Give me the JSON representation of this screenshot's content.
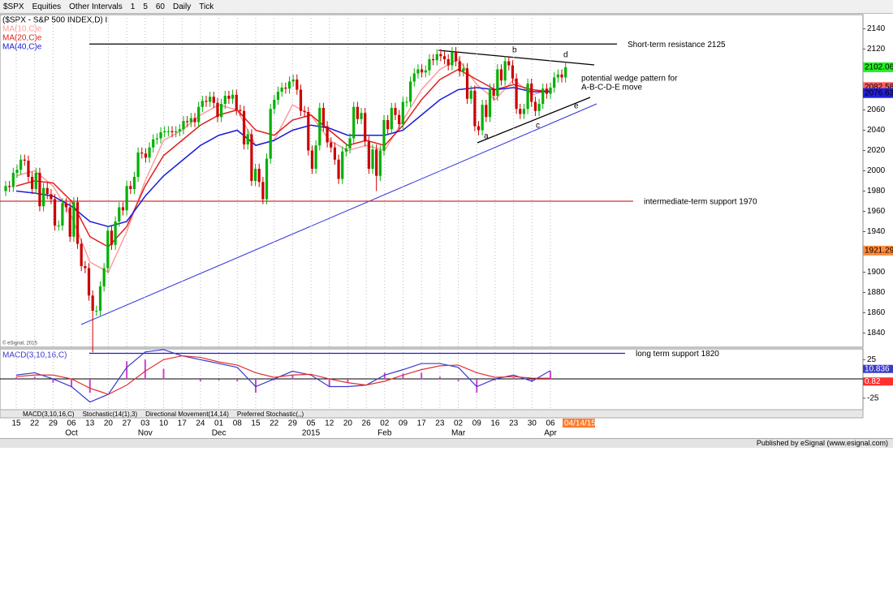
{
  "toolbar": {
    "symbol": "$SPX",
    "items": [
      "Equities",
      "Other Intervals",
      "1",
      "5",
      "60",
      "Daily",
      "Tick"
    ]
  },
  "chart_data": [
    {
      "type": "candlestick",
      "title": "($SPX - S&P 500 INDEX,D) I",
      "categories": [
        "15",
        "22",
        "29",
        "06",
        "13",
        "20",
        "27",
        "03",
        "10",
        "17",
        "24",
        "01",
        "08",
        "15",
        "22",
        "29",
        "05",
        "12",
        "20",
        "26",
        "02",
        "09",
        "17",
        "23",
        "02",
        "09",
        "16",
        "23",
        "30",
        "06"
      ],
      "month_labels": [
        null,
        null,
        null,
        "Oct",
        null,
        null,
        null,
        "Nov",
        null,
        null,
        null,
        "Dec",
        null,
        null,
        null,
        null,
        "2015",
        null,
        null,
        null,
        "Feb",
        null,
        null,
        null,
        "Mar",
        null,
        null,
        null,
        null,
        "Apr"
      ],
      "open": [
        1980,
        1985,
        1984,
        1998,
        2001,
        2011,
        2010,
        1994,
        1982,
        1998,
        1965,
        1983,
        1977,
        1972,
        1946,
        1946,
        1968,
        1964,
        1935,
        1969,
        1928,
        1906,
        1904,
        1877,
        1862,
        1862,
        1886,
        1904,
        1941,
        1927,
        1950,
        1964,
        1961,
        1985,
        1982,
        1994,
        2018,
        2017,
        2013,
        2023,
        2031,
        2032,
        2038,
        2039,
        2039,
        2038,
        2039,
        2041,
        2049,
        2048,
        2052,
        2048,
        2063,
        2069,
        2068,
        2073,
        2067,
        2053,
        2066,
        2074,
        2071,
        2075,
        2060,
        2059,
        2026,
        2036,
        1990,
        2002,
        1989,
        1972,
        2012,
        2061,
        2070,
        2078,
        2082,
        2081,
        2088,
        2090,
        2080,
        2059,
        2058,
        2020,
        2002,
        2025,
        2062,
        2044,
        2028,
        2023,
        2011,
        1992,
        2019,
        2022,
        2032,
        2063,
        2051,
        2057,
        2029,
        2002,
        2021,
        1995,
        2020,
        2050,
        2041,
        2062,
        2055,
        2046,
        2068,
        2068,
        2088,
        2096,
        2100,
        2097,
        2099,
        2110,
        2109,
        2115,
        2113,
        2110,
        2104,
        2117,
        2108,
        2098,
        2101,
        2071,
        2079,
        2044,
        2040,
        2065,
        2053,
        2081,
        2074,
        2100,
        2089,
        2108,
        2104,
        2091,
        2061,
        2056,
        2061,
        2086,
        2068,
        2059,
        2066,
        2081,
        2076,
        2082,
        2092,
        2095,
        2092
      ],
      "high": [
        1990,
        1990,
        2003,
        2006,
        2016,
        2016,
        2015,
        1999,
        2003,
        2003,
        1988,
        1988,
        1982,
        1977,
        1951,
        1973,
        1973,
        1969,
        1974,
        1974,
        1933,
        1911,
        1909,
        1882,
        1867,
        1891,
        1909,
        1946,
        1946,
        1955,
        1969,
        1969,
        1990,
        1990,
        1999,
        2023,
        2023,
        2022,
        2028,
        2036,
        2037,
        2043,
        2044,
        2044,
        2044,
        2044,
        2046,
        2054,
        2054,
        2057,
        2057,
        2068,
        2074,
        2074,
        2078,
        2078,
        2072,
        2071,
        2079,
        2079,
        2080,
        2080,
        2065,
        2064,
        2041,
        2041,
        2007,
        2007,
        1994,
        2017,
        2066,
        2075,
        2083,
        2087,
        2087,
        2093,
        2095,
        2095,
        2085,
        2064,
        2063,
        2025,
        2030,
        2067,
        2067,
        2049,
        2033,
        2028,
        2016,
        2024,
        2027,
        2037,
        2068,
        2068,
        2062,
        2062,
        2034,
        2026,
        2026,
        2025,
        2055,
        2055,
        2067,
        2067,
        2060,
        2073,
        2073,
        2093,
        2101,
        2105,
        2105,
        2104,
        2115,
        2115,
        2120,
        2120,
        2118,
        2115,
        2122,
        2122,
        2113,
        2106,
        2106,
        2084,
        2084,
        2049,
        2070,
        2070,
        2086,
        2086,
        2105,
        2105,
        2113,
        2113,
        2109,
        2096,
        2066,
        2066,
        2091,
        2091,
        2073,
        2071,
        2086,
        2086,
        2087,
        2097,
        2100,
        2100,
        2107
      ],
      "low": [
        1975,
        1979,
        1979,
        1993,
        1996,
        2005,
        1989,
        1977,
        1977,
        1960,
        1960,
        1972,
        1967,
        1941,
        1941,
        1941,
        1959,
        1930,
        1930,
        1923,
        1901,
        1899,
        1872,
        1821,
        1857,
        1857,
        1881,
        1899,
        1922,
        1922,
        1945,
        1956,
        1956,
        1977,
        1977,
        1989,
        2012,
        2008,
        2008,
        2018,
        2026,
        2027,
        2033,
        2034,
        2033,
        2033,
        2034,
        2036,
        2043,
        2043,
        2043,
        2043,
        2058,
        2063,
        2063,
        2062,
        2048,
        2048,
        2061,
        2066,
        2066,
        2055,
        2054,
        2021,
        2021,
        1985,
        1985,
        1984,
        1967,
        1967,
        2007,
        2056,
        2065,
        2073,
        2076,
        2076,
        2083,
        2075,
        2054,
        2053,
        2015,
        1997,
        1997,
        2020,
        2039,
        2023,
        2018,
        2006,
        1987,
        1987,
        2014,
        2017,
        2027,
        2046,
        2046,
        2024,
        1997,
        1997,
        1980,
        1990,
        2015,
        2036,
        2036,
        2050,
        2041,
        2041,
        2063,
        2063,
        2083,
        2091,
        2092,
        2092,
        2094,
        2104,
        2104,
        2108,
        2105,
        2099,
        2099,
        2103,
        2093,
        2093,
        2066,
        2066,
        2039,
        2035,
        2035,
        2048,
        2048,
        2069,
        2069,
        2084,
        2084,
        2099,
        2086,
        2056,
        2051,
        2051,
        2056,
        2063,
        2054,
        2054,
        2061,
        2071,
        2071,
        2077,
        2087,
        2087,
        2087
      ],
      "close": [
        1985,
        1984,
        1998,
        2001,
        2011,
        2010,
        1994,
        1982,
        1998,
        1965,
        1983,
        1977,
        1972,
        1946,
        1946,
        1968,
        1964,
        1935,
        1969,
        1928,
        1906,
        1904,
        1877,
        1862,
        1862,
        1886,
        1904,
        1941,
        1927,
        1950,
        1964,
        1961,
        1985,
        1982,
        1994,
        2018,
        2017,
        2013,
        2023,
        2031,
        2032,
        2038,
        2039,
        2039,
        2038,
        2039,
        2041,
        2049,
        2048,
        2052,
        2048,
        2063,
        2069,
        2068,
        2073,
        2067,
        2053,
        2066,
        2074,
        2071,
        2075,
        2060,
        2059,
        2026,
        2036,
        1990,
        2002,
        1989,
        1972,
        2012,
        2061,
        2070,
        2078,
        2082,
        2081,
        2088,
        2090,
        2080,
        2059,
        2058,
        2020,
        2002,
        2025,
        2062,
        2044,
        2028,
        2023,
        2011,
        1992,
        2019,
        2022,
        2032,
        2063,
        2051,
        2057,
        2029,
        2002,
        2021,
        1995,
        2020,
        2050,
        2041,
        2062,
        2055,
        2046,
        2068,
        2068,
        2088,
        2096,
        2100,
        2097,
        2099,
        2110,
        2109,
        2115,
        2113,
        2110,
        2104,
        2117,
        2108,
        2098,
        2101,
        2071,
        2079,
        2044,
        2040,
        2065,
        2053,
        2081,
        2074,
        2100,
        2089,
        2108,
        2104,
        2091,
        2061,
        2056,
        2061,
        2086,
        2068,
        2059,
        2066,
        2081,
        2076,
        2082,
        2092,
        2095,
        2092,
        2102.06
      ],
      "up_color": "#00b000",
      "down_color": "#cc0000",
      "ylim": [
        1826,
        2154
      ],
      "yticks": [
        1840,
        1860,
        1880,
        1900,
        1920,
        1940,
        1960,
        1980,
        2000,
        2020,
        2040,
        2060,
        2080,
        2100,
        2120,
        2140
      ],
      "series": [
        {
          "name": "MA(10,C)e",
          "color": "#ff9a9a",
          "values": [
            1995,
            2000,
            1985,
            1955,
            1910,
            1900,
            1940,
            1990,
            2030,
            2040,
            2055,
            2065,
            2060,
            2025,
            2030,
            2065,
            2055,
            2030,
            2020,
            2025,
            2020,
            2050,
            2080,
            2100,
            2110,
            2085,
            2070,
            2090,
            2075,
            2080
          ]
        },
        {
          "name": "MA(20,C)e",
          "color": "#e02020",
          "values": [
            1985,
            1990,
            1988,
            1970,
            1935,
            1925,
            1945,
            1985,
            2015,
            2030,
            2045,
            2055,
            2060,
            2040,
            2035,
            2050,
            2055,
            2040,
            2025,
            2030,
            2025,
            2045,
            2070,
            2090,
            2100,
            2090,
            2080,
            2085,
            2080,
            2078
          ]
        },
        {
          "name": "MA(40,C)e",
          "color": "#1a1adc",
          "values": [
            1980,
            1978,
            1975,
            1965,
            1950,
            1945,
            1950,
            1975,
            1995,
            2010,
            2025,
            2035,
            2040,
            2025,
            2030,
            2040,
            2045,
            2042,
            2035,
            2035,
            2035,
            2040,
            2055,
            2070,
            2080,
            2082,
            2080,
            2082,
            2078,
            2078
          ]
        }
      ],
      "levels": [
        {
          "label": "Short-term resistance 2125",
          "value": 2125,
          "color": "#000000"
        },
        {
          "label": "intermediate-term support 1970",
          "value": 1970,
          "color": "#d03030"
        },
        {
          "label": "long term support 1820",
          "value": 1820,
          "color": "#1a1adc"
        }
      ],
      "annotation": [
        "potential wedge pattern for",
        "A-B-C-D-E move"
      ],
      "wedge_points": [
        "a",
        "b",
        "c",
        "d",
        "e"
      ],
      "price_tags": [
        2102.06,
        2082.58,
        2076.63,
        1921.29
      ],
      "price_tag_colors": [
        "#22ee22",
        "#ff6060",
        "#2020e0",
        "#ff8a3a"
      ],
      "date_tag": "04/14/15",
      "copyright": "© eSignal, 2015"
    },
    {
      "type": "macd",
      "title": "MACD(3,10,16,C)",
      "ylim": [
        -40,
        39
      ],
      "yticks": [
        25,
        -25
      ],
      "series": [
        {
          "color": "#3a3acc",
          "values": [
            5,
            8,
            0,
            -10,
            -30,
            -20,
            15,
            35,
            38,
            30,
            25,
            20,
            15,
            -10,
            0,
            10,
            5,
            -10,
            -10,
            -8,
            5,
            12,
            20,
            20,
            15,
            -10,
            0,
            5,
            -3,
            10.836
          ]
        },
        {
          "color": "#e03030",
          "values": [
            3,
            5,
            5,
            0,
            -12,
            -20,
            -8,
            10,
            25,
            30,
            28,
            22,
            18,
            8,
            2,
            5,
            6,
            0,
            -5,
            -8,
            -3,
            5,
            12,
            17,
            18,
            8,
            2,
            3,
            1,
            0.82
          ]
        }
      ],
      "histogram": [
        2,
        3,
        -5,
        -10,
        -18,
        0,
        23,
        25,
        13,
        0,
        -3,
        -2,
        -3,
        -18,
        -2,
        5,
        -1,
        -10,
        -5,
        0,
        8,
        7,
        8,
        3,
        -3,
        -18,
        -2,
        2,
        -4,
        10
      ],
      "histogram_color": "#cc44cc",
      "value_tags": [
        10.836,
        0.82
      ],
      "value_tag_colors": [
        "#3a3acc",
        "#ff3030"
      ]
    }
  ],
  "tabs": [
    "MACD(3,10,16,C)",
    "Stochastic(14(1),3)",
    "Directional Movement(14,14)",
    "Preferred Stochastic(,,)"
  ],
  "footer": "Published by eSignal (www.esignal.com)"
}
